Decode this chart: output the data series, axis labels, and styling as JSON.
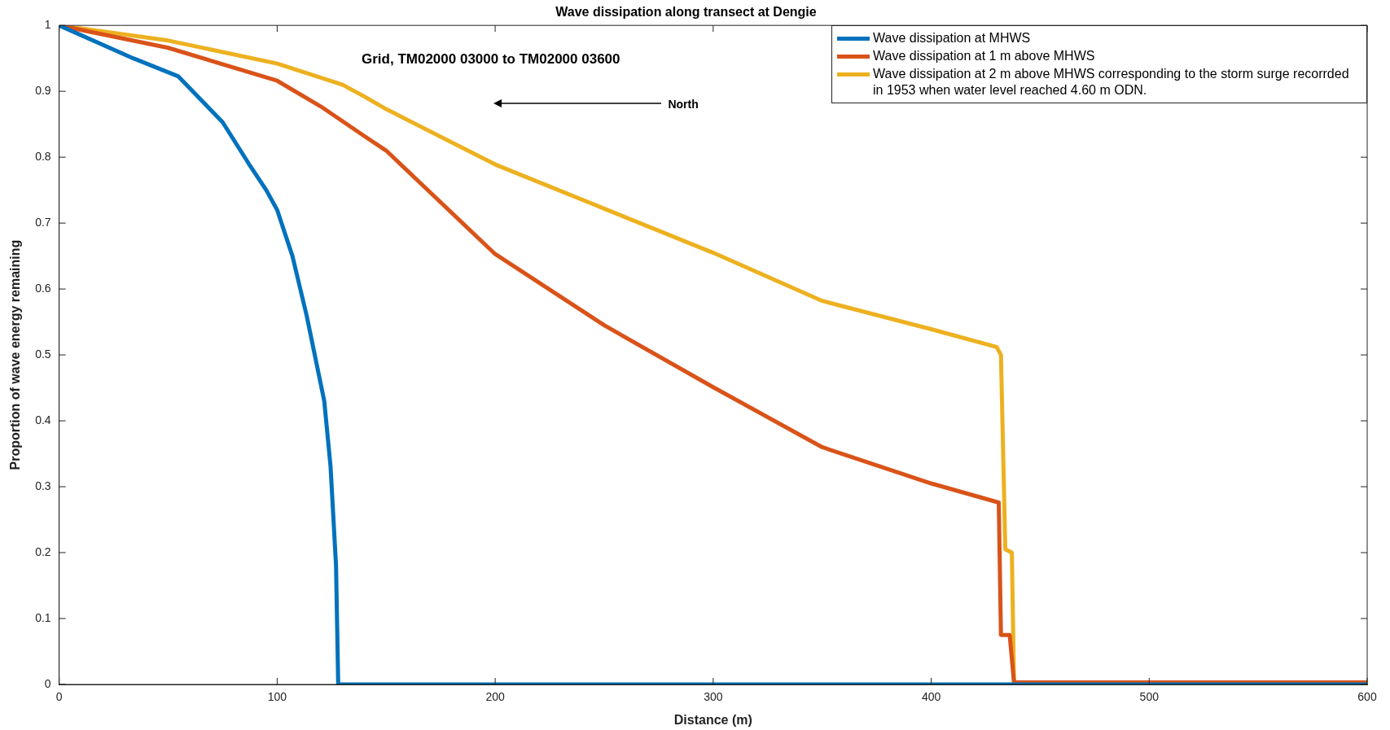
{
  "chart_data": {
    "type": "line",
    "title": "Wave dissipation along transect at Dengie",
    "xlabel": "Distance (m)",
    "ylabel": "Proportion of wave energy remaining",
    "xlim": [
      0,
      600
    ],
    "xticks": [
      0,
      100,
      200,
      300,
      400,
      500,
      600
    ],
    "ylim": [
      0,
      1
    ],
    "yticks": [
      0,
      0.1,
      0.2,
      0.3,
      0.4,
      0.5,
      0.6,
      0.7,
      0.8,
      0.9,
      1
    ],
    "grid": false,
    "legend": "top right",
    "marker": "none",
    "line_style": "solid",
    "annotations": [
      "Grid, TM02000 03000 to TM02000 03600",
      "North"
    ],
    "series": [
      {
        "name": "Wave dissipation at MHWS",
        "color": "#0072bd",
        "x": [
          0,
          34,
          54.5,
          75,
          87,
          95,
          100,
          107,
          113.5,
          121.6,
          124.5,
          127,
          128,
          200,
          300,
          400,
          500,
          600
        ],
        "values": [
          1,
          0.95,
          0.923,
          0.853,
          0.79,
          0.75,
          0.72,
          0.65,
          0.56,
          0.43,
          0.33,
          0.18,
          0,
          0,
          0,
          0,
          0,
          0
        ]
      },
      {
        "name": "Wave dissipation at 1 m above MHWS",
        "color": "#d95319",
        "x": [
          0,
          50,
          100,
          120,
          140,
          150,
          200,
          250,
          300,
          350,
          400,
          431,
          432,
          436,
          438,
          500,
          600
        ],
        "values": [
          1,
          0.966,
          0.916,
          0.877,
          0.832,
          0.81,
          0.653,
          0.545,
          0.451,
          0.36,
          0.305,
          0.276,
          0.075,
          0.075,
          0.003,
          0.003,
          0.003
        ]
      },
      {
        "name": "Wave dissipation at 2 m above MHWS corresponding to the storm surge recorrded in 1953 when water level reached 4.60 m ODN.",
        "color": "#edb120",
        "x": [
          0,
          50,
          100,
          130,
          140,
          150,
          200,
          250,
          300,
          350,
          400,
          430,
          432,
          434,
          437,
          438,
          500,
          600
        ],
        "values": [
          1,
          0.977,
          0.942,
          0.91,
          0.892,
          0.873,
          0.789,
          0.722,
          0.655,
          0.582,
          0.539,
          0.512,
          0.5,
          0.205,
          0.2,
          0,
          0,
          0
        ]
      }
    ]
  }
}
